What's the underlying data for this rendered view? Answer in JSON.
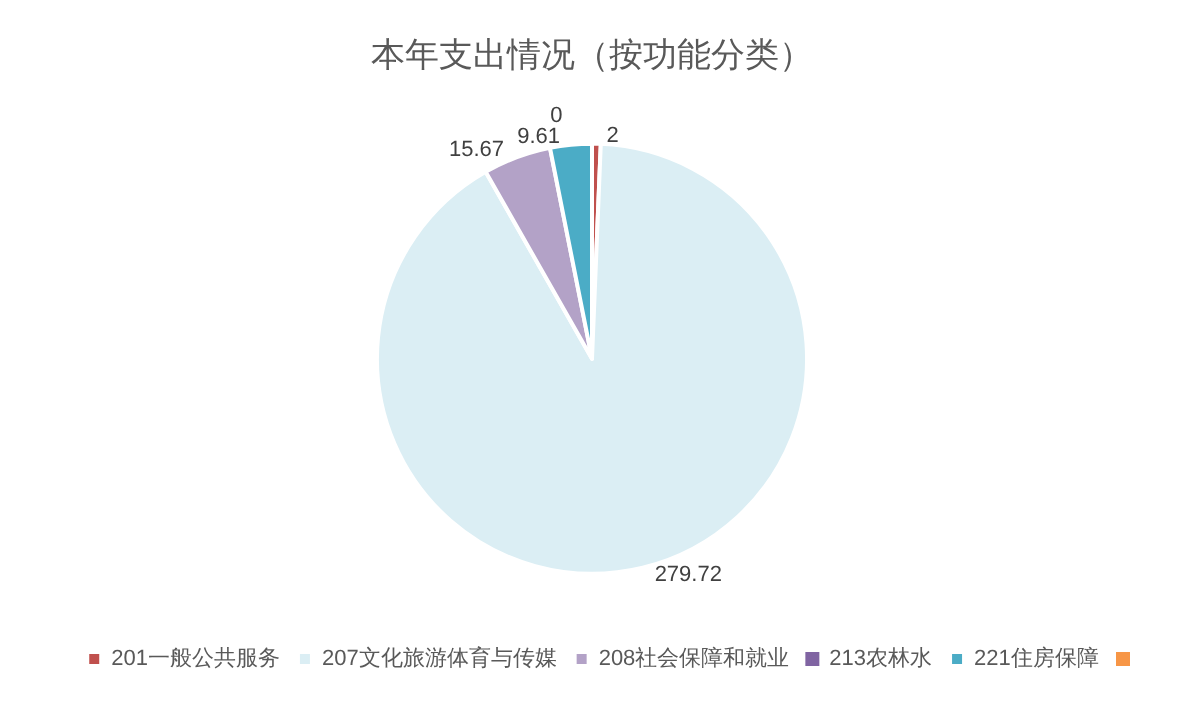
{
  "chart_data": {
    "type": "pie",
    "title": "本年支出情况（按功能分类）",
    "categories": [
      "201一般公共服务",
      "207文化旅游体育与传媒",
      "208社会保障和就业",
      "213农林水",
      "221住房保障"
    ],
    "values": [
      2,
      279.72,
      15.67,
      0,
      9.61
    ],
    "colors": [
      "#c0504d",
      "#dbeef4",
      "#b3a2c7",
      "#8064a2",
      "#4bacc6"
    ],
    "value_labels": [
      "2",
      "279.72",
      "15.67",
      "0",
      "9.61"
    ],
    "legend": "bottom"
  }
}
